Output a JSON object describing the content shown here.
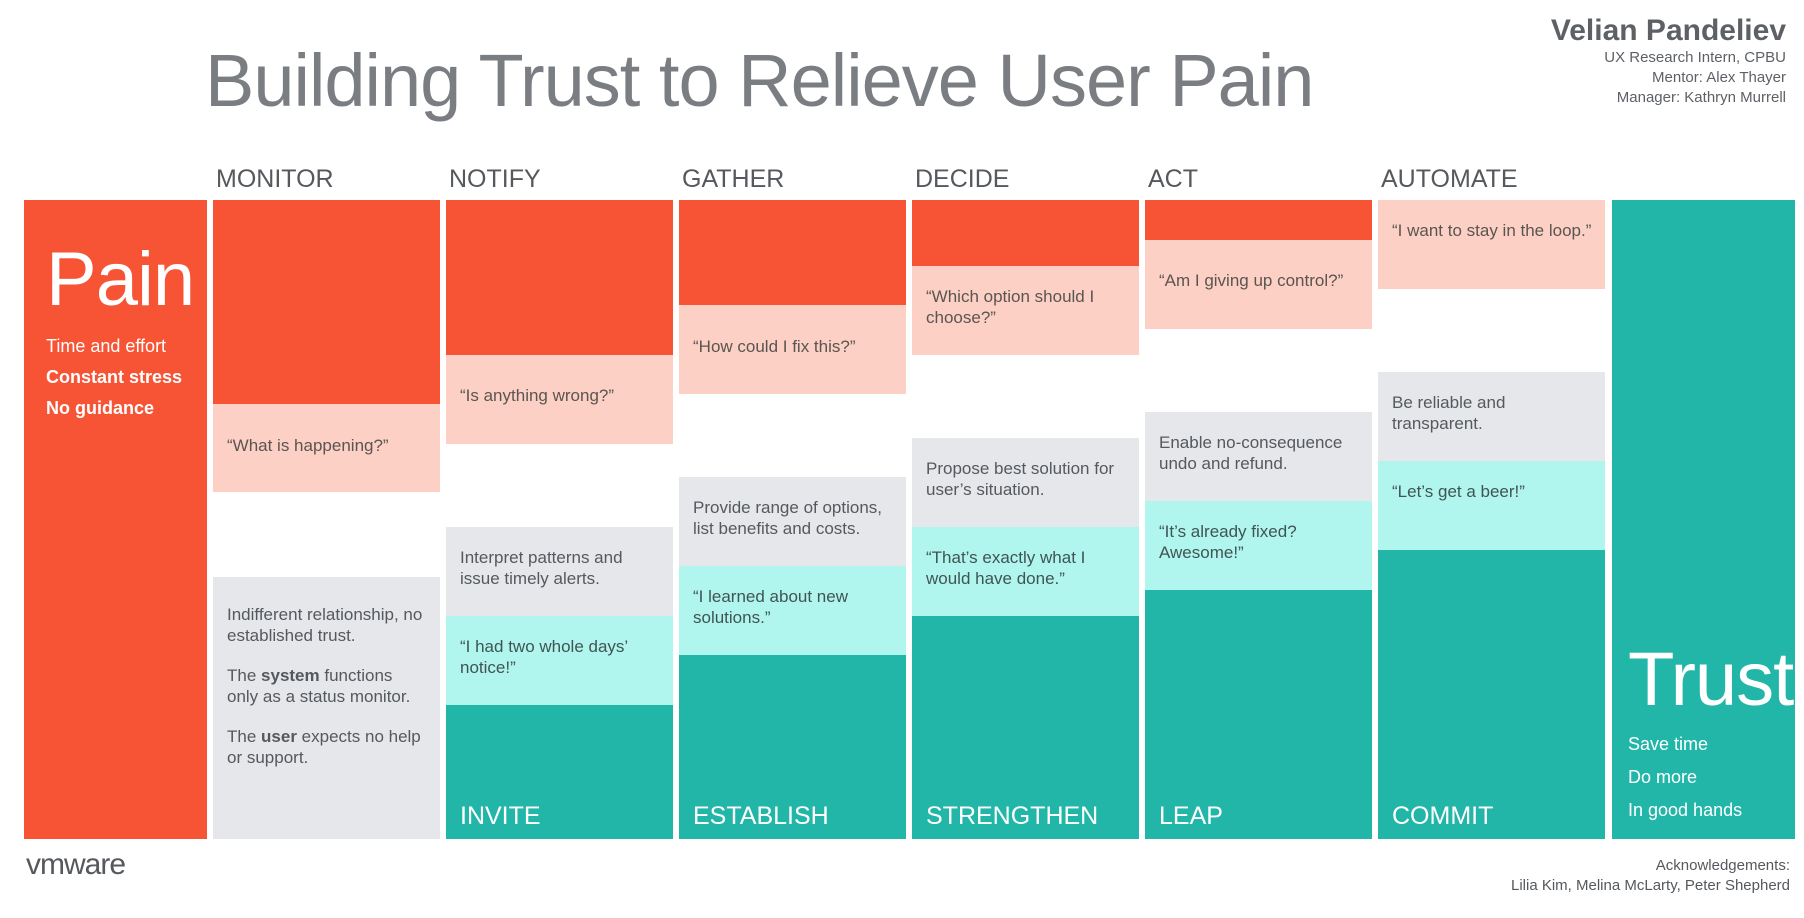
{
  "title": "Building Trust to Relieve User Pain",
  "author": {
    "name": "Velian Pandeliev",
    "role": "UX Research Intern, CPBU",
    "mentor": "Mentor: Alex Thayer",
    "manager": "Manager: Kathryn Murrell"
  },
  "pain": {
    "heading": "Pain",
    "items": [
      "Time and effort",
      "Constant stress",
      "No guidance"
    ]
  },
  "trust": {
    "heading": "Trust",
    "items": [
      "Save time",
      "Do more",
      "In good hands"
    ]
  },
  "columns": [
    {
      "phase": "MONITOR",
      "pain_quote": "“What is happening?”",
      "description_1": "Indifferent relationship, no established trust.",
      "description_2_pre": "The ",
      "description_2_bold": "system",
      "description_2_post": " functions only as a status monitor.",
      "description_3_pre": "The ",
      "description_3_bold": "user",
      "description_3_post": " expects no help or support."
    },
    {
      "phase": "NOTIFY",
      "pain_quote": "“Is anything wrong?”",
      "action": "Interpret patterns and issue timely alerts.",
      "trust_quote": "“I had two whole days’ notice!”",
      "stage": "INVITE"
    },
    {
      "phase": "GATHER",
      "pain_quote": "“How could I fix this?”",
      "action": "Provide range of options, list benefits and costs.",
      "trust_quote": "“I learned about new solutions.”",
      "stage": "ESTABLISH"
    },
    {
      "phase": "DECIDE",
      "pain_quote": "“Which option should I choose?”",
      "action": "Propose best solution for user’s situation.",
      "trust_quote": "“That’s exactly what I would have done.”",
      "stage": "STRENGTHEN"
    },
    {
      "phase": "ACT",
      "pain_quote": "“Am I giving up control?”",
      "action": "Enable no-consequence undo and refund.",
      "trust_quote": "“It’s already fixed? Awesome!”",
      "stage": "LEAP"
    },
    {
      "phase": "AUTOMATE",
      "pain_quote": "“I want to stay in the loop.”",
      "action": "Be reliable and transparent.",
      "trust_quote": "“Let’s get a beer!”",
      "stage": "COMMIT"
    }
  ],
  "logo_text": "vmware",
  "acknowledgements": {
    "heading": "Acknowledgements:",
    "names": "Lilia Kim, Melina McLarty, Peter Shepherd"
  },
  "colors": {
    "pain_orange": "#f75435",
    "pain_pink": "#fdd0c5",
    "neutral_grey": "#e5e7ea",
    "trust_mint": "#b1f5ef",
    "trust_teal": "#22b6a9"
  }
}
